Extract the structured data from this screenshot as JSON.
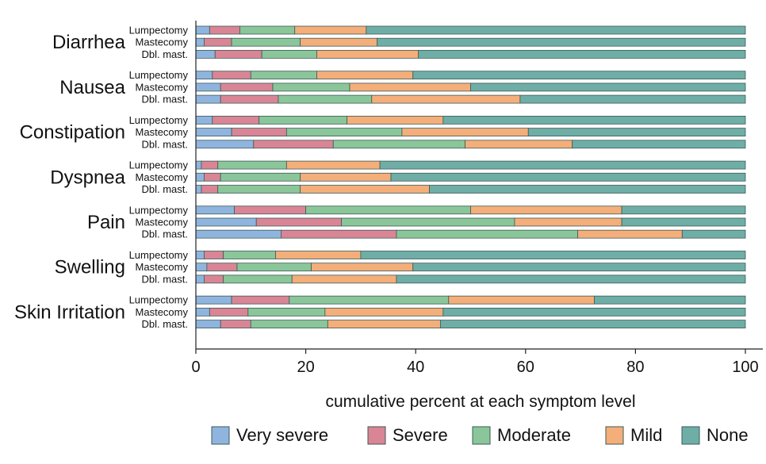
{
  "chart_data": {
    "type": "bar",
    "orientation": "horizontal",
    "stacked": true,
    "xlabel": "cumulative percent at each symptom level",
    "xlim": [
      0,
      100
    ],
    "xticks": [
      0,
      20,
      40,
      60,
      80,
      100
    ],
    "legend_position": "bottom",
    "levels": [
      "Very severe",
      "Severe",
      "Moderate",
      "Mild",
      "None"
    ],
    "colors": {
      "Very severe": "#8fb5de",
      "Severe": "#d98595",
      "Moderate": "#8ac699",
      "Mild": "#f4ae7a",
      "None": "#6eaea6"
    },
    "groups": [
      {
        "name": "Diarrhea",
        "bars": [
          {
            "label": "Lumpectomy",
            "values": [
              2.5,
              5.5,
              10,
              13,
              69
            ]
          },
          {
            "label": "Mastecomy",
            "values": [
              1.5,
              5,
              12.5,
              14,
              67
            ]
          },
          {
            "label": "Dbl. mast.",
            "values": [
              3.5,
              8.5,
              10,
              18.5,
              59.5
            ]
          }
        ]
      },
      {
        "name": "Nausea",
        "bars": [
          {
            "label": "Lumpectomy",
            "values": [
              3,
              7,
              12,
              17.5,
              60.5
            ]
          },
          {
            "label": "Mastecomy",
            "values": [
              4.5,
              9.5,
              14,
              22,
              50
            ]
          },
          {
            "label": "Dbl. mast.",
            "values": [
              4.5,
              10.5,
              17,
              27,
              41
            ]
          }
        ]
      },
      {
        "name": "Constipation",
        "bars": [
          {
            "label": "Lumpectomy",
            "values": [
              3,
              8.5,
              16,
              17.5,
              55
            ]
          },
          {
            "label": "Mastecomy",
            "values": [
              6.5,
              10,
              21,
              23,
              39.5
            ]
          },
          {
            "label": "Dbl. mast.",
            "values": [
              10.5,
              14.5,
              24,
              19.5,
              31.5
            ]
          }
        ]
      },
      {
        "name": "Dyspnea",
        "bars": [
          {
            "label": "Lumpectomy",
            "values": [
              1,
              3,
              12.5,
              17,
              66.5
            ]
          },
          {
            "label": "Mastecomy",
            "values": [
              1.5,
              3,
              14.5,
              16.5,
              64.5
            ]
          },
          {
            "label": "Dbl. mast.",
            "values": [
              1,
              3,
              15,
              23.5,
              57.5
            ]
          }
        ]
      },
      {
        "name": "Pain",
        "bars": [
          {
            "label": "Lumpectomy",
            "values": [
              7,
              13,
              30,
              27.5,
              22.5
            ]
          },
          {
            "label": "Mastecomy",
            "values": [
              11,
              15.5,
              31.5,
              19.5,
              22.5
            ]
          },
          {
            "label": "Dbl. mast.",
            "values": [
              15.5,
              21,
              33,
              19,
              11.5
            ]
          }
        ]
      },
      {
        "name": "Swelling",
        "bars": [
          {
            "label": "Lumpectomy",
            "values": [
              1.5,
              3.5,
              9.5,
              15.5,
              70
            ]
          },
          {
            "label": "Mastecomy",
            "values": [
              2,
              5.5,
              13.5,
              18.5,
              60.5
            ]
          },
          {
            "label": "Dbl. mast.",
            "values": [
              1.5,
              3.5,
              12.5,
              19,
              63.5
            ]
          }
        ]
      },
      {
        "name": "Skin Irritation",
        "bars": [
          {
            "label": "Lumpectomy",
            "values": [
              6.5,
              10.5,
              29,
              26.5,
              27.5
            ]
          },
          {
            "label": "Mastecomy",
            "values": [
              2.5,
              7,
              14,
              21.5,
              55
            ]
          },
          {
            "label": "Dbl. mast.",
            "values": [
              4.5,
              5.5,
              14,
              20.5,
              55.5
            ]
          }
        ]
      }
    ]
  }
}
